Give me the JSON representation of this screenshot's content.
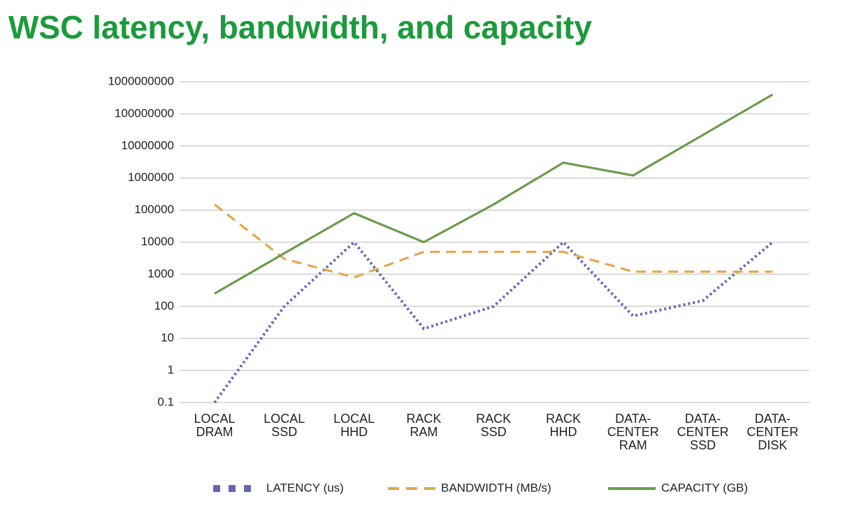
{
  "chart_data": {
    "type": "line",
    "title": "WSC latency, bandwidth, and capacity",
    "categories": [
      "LOCAL DRAM",
      "LOCAL SSD",
      "LOCAL HHD",
      "RACK RAM",
      "RACK SSD",
      "RACK HHD",
      "DATA-CENTER RAM",
      "DATA-CENTER SSD",
      "DATA-CENTER DISK"
    ],
    "series": [
      {
        "name": "LATENCY (us)",
        "color": "#6468b4",
        "style": "dotted",
        "values": [
          0.1,
          100,
          10000,
          20,
          100,
          10000,
          50,
          150,
          10000
        ]
      },
      {
        "name": "BANDWIDTH (MB/s)",
        "color": "#e2a84a",
        "style": "dashed",
        "values": [
          150000,
          3000,
          800,
          5000,
          5000,
          5000,
          1200,
          1200,
          1200
        ]
      },
      {
        "name": "CAPACITY (GB)",
        "color": "#6b9b4b",
        "style": "solid",
        "values": [
          250,
          4500,
          80000,
          10000,
          150000,
          3000000,
          1200000,
          22000000,
          400000000
        ]
      }
    ],
    "log_scale": true,
    "ylim": [
      0.1,
      1000000000
    ],
    "yticks": [
      0.1,
      1,
      10,
      100,
      1000,
      10000,
      100000,
      1000000,
      10000000,
      100000000,
      1000000000
    ],
    "grid": true,
    "legend": "bottom"
  }
}
